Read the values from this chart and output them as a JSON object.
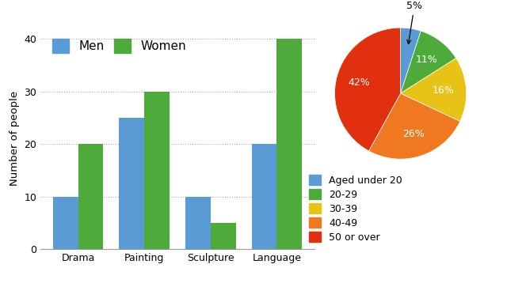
{
  "bar_categories": [
    "Drama",
    "Painting",
    "Sculpture",
    "Language"
  ],
  "men_values": [
    10,
    25,
    10,
    20
  ],
  "women_values": [
    20,
    30,
    5,
    40
  ],
  "men_color": "#5B9BD5",
  "women_color": "#4EAA3B",
  "bar_ylabel": "Number of people",
  "bar_ylim": [
    0,
    42
  ],
  "bar_yticks": [
    0,
    10,
    20,
    30,
    40
  ],
  "legend_men": "Men",
  "legend_women": "Women",
  "pie_values": [
    5,
    11,
    16,
    26,
    42
  ],
  "pie_labels": [
    "5%",
    "11%",
    "16%",
    "26%",
    "42%"
  ],
  "pie_colors": [
    "#5B9BD5",
    "#4EAA3B",
    "#E8C317",
    "#F07820",
    "#E03010"
  ],
  "pie_legend_labels": [
    "Aged under 20",
    "20-29",
    "30-39",
    "40-49",
    "50 or over"
  ],
  "pie_legend_colors": [
    "#5B9BD5",
    "#4EAA3B",
    "#E8C317",
    "#F07820",
    "#E03010"
  ],
  "annotation_color": "#000000"
}
